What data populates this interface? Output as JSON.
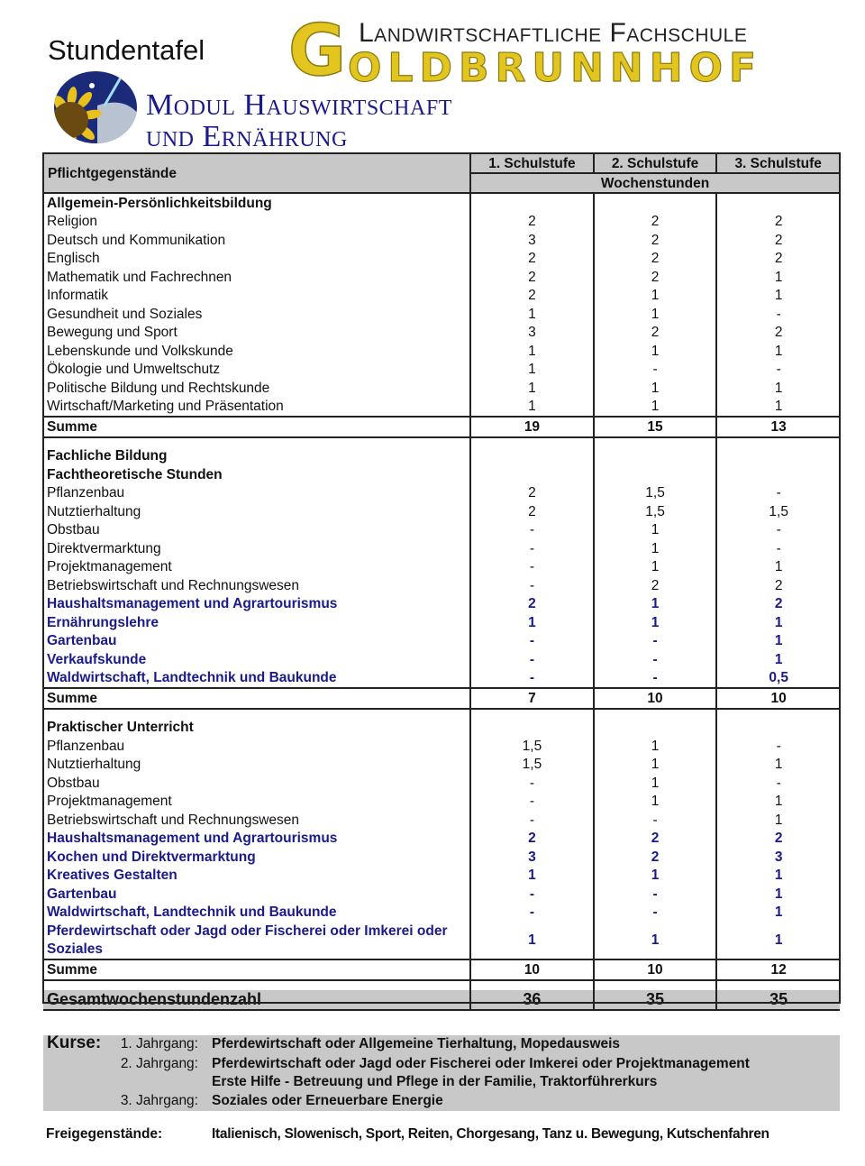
{
  "header": {
    "title": "Stundentafel",
    "school_line1": "Landwirtschaftliche Fachschule",
    "school_name_first": "G",
    "school_name_rest": "OLDBRUNNHOF",
    "module_line1": "Modul Hauswirtschaft",
    "module_line2": "und Ernährung",
    "logo_colors": {
      "sky": "#1c2a7a",
      "sunflower": "#e8c21a",
      "center": "#6b4a12"
    }
  },
  "table": {
    "header_label": "Pflichtgegenstände",
    "columns": [
      "1. Schulstufe",
      "2. Schulstufe",
      "3. Schulstufe"
    ],
    "unit_label": "Wochenstunden",
    "accent_color": "#1a1a8c",
    "rows": [
      {
        "type": "group",
        "label": "Allgemein-Persönlichkeitsbildung",
        "values": [
          "",
          "",
          ""
        ]
      },
      {
        "type": "item",
        "label": "Religion",
        "values": [
          "2",
          "2",
          "2"
        ]
      },
      {
        "type": "item",
        "label": "Deutsch und Kommunikation",
        "values": [
          "3",
          "2",
          "2"
        ]
      },
      {
        "type": "item",
        "label": "Englisch",
        "values": [
          "2",
          "2",
          "2"
        ]
      },
      {
        "type": "item",
        "label": "Mathematik und Fachrechnen",
        "values": [
          "2",
          "2",
          "1"
        ]
      },
      {
        "type": "item",
        "label": "Informatik",
        "values": [
          "2",
          "1",
          "1"
        ]
      },
      {
        "type": "item",
        "label": "Gesundheit und Soziales",
        "values": [
          "1",
          "1",
          "-"
        ]
      },
      {
        "type": "item",
        "label": "Bewegung und Sport",
        "values": [
          "3",
          "2",
          "2"
        ]
      },
      {
        "type": "item",
        "label": "Lebenskunde und Volkskunde",
        "values": [
          "1",
          "1",
          "1"
        ]
      },
      {
        "type": "item",
        "label": "Ökologie und Umweltschutz",
        "values": [
          "1",
          "-",
          "-"
        ]
      },
      {
        "type": "item",
        "label": "Politische Bildung und Rechtskunde",
        "values": [
          "1",
          "1",
          "1"
        ]
      },
      {
        "type": "item",
        "label": "Wirtschaft/Marketing und Präsentation",
        "values": [
          "1",
          "1",
          "1"
        ]
      },
      {
        "type": "sum",
        "label": "Summe",
        "values": [
          "19",
          "15",
          "13"
        ]
      },
      {
        "type": "spacer",
        "label": "",
        "values": [
          "",
          "",
          ""
        ]
      },
      {
        "type": "group",
        "label": "Fachliche Bildung",
        "values": [
          "",
          "",
          ""
        ]
      },
      {
        "type": "group",
        "label": "Fachtheoretische Stunden",
        "values": [
          "",
          "",
          ""
        ]
      },
      {
        "type": "item",
        "label": "Pflanzenbau",
        "values": [
          "2",
          "1,5",
          "-"
        ]
      },
      {
        "type": "item",
        "label": "Nutztierhaltung",
        "values": [
          "2",
          "1,5",
          "1,5"
        ]
      },
      {
        "type": "item",
        "label": "Obstbau",
        "values": [
          "-",
          "1",
          "-"
        ]
      },
      {
        "type": "item",
        "label": "Direktvermarktung",
        "values": [
          "-",
          "1",
          "-"
        ]
      },
      {
        "type": "item",
        "label": "Projektmanagement",
        "values": [
          "-",
          "1",
          "1"
        ]
      },
      {
        "type": "item",
        "label": "Betriebswirtschaft und Rechnungswesen",
        "values": [
          "-",
          "2",
          "2"
        ]
      },
      {
        "type": "blue",
        "label": "Haushaltsmanagement und Agrartourismus",
        "values": [
          "2",
          "1",
          "2"
        ]
      },
      {
        "type": "blue",
        "label": "Ernährungslehre",
        "values": [
          "1",
          "1",
          "1"
        ]
      },
      {
        "type": "blue",
        "label": "Gartenbau",
        "values": [
          "-",
          "-",
          "1"
        ]
      },
      {
        "type": "blue",
        "label": "Verkaufskunde",
        "values": [
          "-",
          "-",
          "1"
        ]
      },
      {
        "type": "blue",
        "label": "Waldwirtschaft, Landtechnik und Baukunde",
        "values": [
          "-",
          "-",
          "0,5"
        ]
      },
      {
        "type": "sum",
        "label": "Summe",
        "values": [
          "7",
          "10",
          "10"
        ]
      },
      {
        "type": "spacer",
        "label": "",
        "values": [
          "",
          "",
          ""
        ]
      },
      {
        "type": "group",
        "label": "Praktischer Unterricht",
        "values": [
          "",
          "",
          ""
        ]
      },
      {
        "type": "item",
        "label": "Pflanzenbau",
        "values": [
          "1,5",
          "1",
          "-"
        ]
      },
      {
        "type": "item",
        "label": "Nutztierhaltung",
        "values": [
          "1,5",
          "1",
          "1"
        ]
      },
      {
        "type": "item",
        "label": "Obstbau",
        "values": [
          "-",
          "1",
          "-"
        ]
      },
      {
        "type": "item",
        "label": "Projektmanagement",
        "values": [
          "-",
          "1",
          "1"
        ]
      },
      {
        "type": "item",
        "label": "Betriebswirtschaft und Rechnungswesen",
        "values": [
          "-",
          "-",
          "1"
        ]
      },
      {
        "type": "blue",
        "label": "Haushaltsmanagement und Agrartourismus",
        "values": [
          "2",
          "2",
          "2"
        ]
      },
      {
        "type": "blue",
        "label": "Kochen und Direktvermarktung",
        "values": [
          "3",
          "2",
          "3"
        ]
      },
      {
        "type": "blue",
        "label": "Kreatives Gestalten",
        "values": [
          "1",
          "1",
          "1"
        ]
      },
      {
        "type": "blue",
        "label": "Gartenbau",
        "values": [
          "-",
          "-",
          "1"
        ]
      },
      {
        "type": "blue",
        "label": "Waldwirtschaft, Landtechnik und Baukunde",
        "values": [
          "-",
          "-",
          "1"
        ]
      },
      {
        "type": "blue double",
        "label": "Pferdewirtschaft oder Jagd oder Fischerei oder Imkerei oder Soziales",
        "values": [
          "1",
          "1",
          "1"
        ]
      },
      {
        "type": "sum",
        "label": "Summe",
        "values": [
          "10",
          "10",
          "12"
        ]
      },
      {
        "type": "spacer",
        "label": "",
        "values": [
          "",
          "",
          ""
        ]
      },
      {
        "type": "total",
        "label": "Gesamtwochenstundenzahl",
        "values": [
          "36",
          "35",
          "35"
        ]
      }
    ]
  },
  "kurse": {
    "label": "Kurse:",
    "entries": [
      {
        "year": "1. Jahrgang:",
        "text": "Pferdewirtschaft oder Allgemeine Tierhaltung, Mopedausweis"
      },
      {
        "year": "2. Jahrgang:",
        "text": "Pferdewirtschaft oder Jagd oder Fischerei oder Imkerei oder Projektmanagement"
      },
      {
        "year": "",
        "text": "Erste Hilfe - Betreuung und Pflege in der Familie, Traktorführerkurs"
      },
      {
        "year": "3. Jahrgang:",
        "text": "Soziales oder Erneuerbare Energie"
      }
    ]
  },
  "freigegenstaende": {
    "label": "Freigegenstände:",
    "text": "Italienisch, Slowenisch, Sport, Reiten, Chorgesang, Tanz u. Bewegung, Kutschenfahren"
  }
}
